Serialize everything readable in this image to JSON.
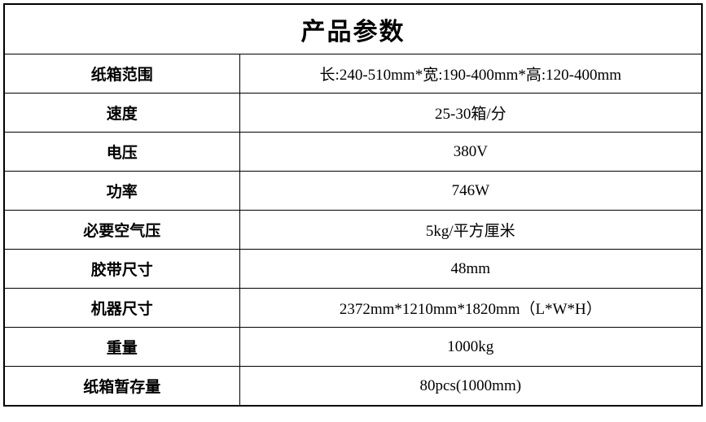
{
  "table": {
    "title": "产品参数",
    "title_fontsize": 30,
    "label_fontsize": 19,
    "value_fontsize": 19,
    "label_fontweight": "bold",
    "border_color": "#000000",
    "background_color": "#ffffff",
    "text_color": "#000000",
    "label_column_width": 290,
    "value_column_width": 569,
    "rows": [
      {
        "label": "纸箱范围",
        "value": "长:240-510mm*宽:190-400mm*高:120-400mm"
      },
      {
        "label": "速度",
        "value": "25-30箱/分"
      },
      {
        "label": "电压",
        "value": "380V"
      },
      {
        "label": "功率",
        "value": "746W"
      },
      {
        "label": "必要空气压",
        "value": "5kg/平方厘米"
      },
      {
        "label": "胶带尺寸",
        "value": "48mm"
      },
      {
        "label": "机器尺寸",
        "value": "2372mm*1210mm*1820mm（L*W*H）"
      },
      {
        "label": "重量",
        "value": "1000kg"
      },
      {
        "label": "纸箱暂存量",
        "value": "80pcs(1000mm)"
      }
    ]
  }
}
